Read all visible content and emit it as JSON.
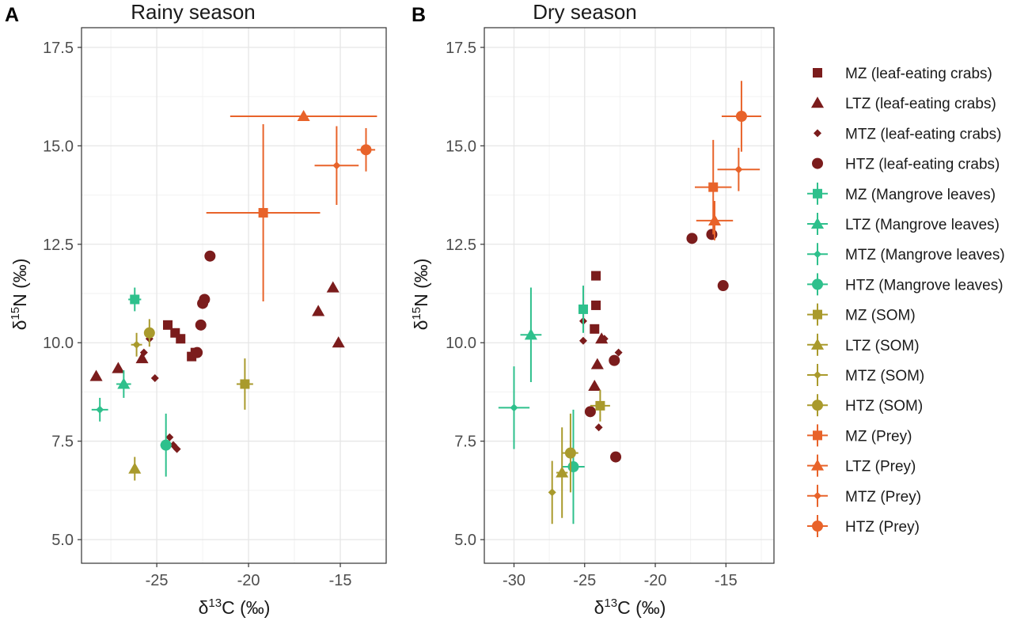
{
  "chart_data": [
    {
      "type": "scatter",
      "tag": "A",
      "title": "Rainy season",
      "xlabel": {
        "base": "δ",
        "sup": "13",
        "rest": "C (‰)"
      },
      "ylabel": {
        "base": "δ",
        "sup": "15",
        "rest": "N (‰)"
      },
      "xlim": [
        -29.1,
        -12.5
      ],
      "ylim": [
        4.4,
        18.0
      ],
      "xticks": [
        -25,
        -20,
        -15
      ],
      "xtick_labels": [
        "-25",
        "-20",
        "-15"
      ],
      "yticks": [
        5.0,
        7.5,
        10.0,
        12.5,
        15.0,
        17.5
      ],
      "ytick_labels": [
        "5.0",
        "7.5",
        "10.0",
        "12.5",
        "15.0",
        "17.5"
      ],
      "points": [
        {
          "series": 1,
          "x": -28.3,
          "y": 9.15
        },
        {
          "series": 1,
          "x": -27.1,
          "y": 9.35
        },
        {
          "series": 1,
          "x": -25.8,
          "y": 9.6
        },
        {
          "series": 1,
          "x": -16.2,
          "y": 10.8
        },
        {
          "series": 1,
          "x": -15.4,
          "y": 11.4
        },
        {
          "series": 1,
          "x": -15.1,
          "y": 10.0
        },
        {
          "series": 0,
          "x": -24.4,
          "y": 10.45
        },
        {
          "series": 0,
          "x": -24.0,
          "y": 10.25
        },
        {
          "series": 0,
          "x": -23.7,
          "y": 10.1
        },
        {
          "series": 0,
          "x": -23.1,
          "y": 9.65
        },
        {
          "series": 0,
          "x": -22.9,
          "y": 9.75
        },
        {
          "series": 2,
          "x": -25.1,
          "y": 9.1
        },
        {
          "series": 2,
          "x": -25.4,
          "y": 10.1
        },
        {
          "series": 2,
          "x": -25.7,
          "y": 9.75
        },
        {
          "series": 2,
          "x": -24.3,
          "y": 7.6
        },
        {
          "series": 2,
          "x": -24.1,
          "y": 7.4
        },
        {
          "series": 2,
          "x": -23.9,
          "y": 7.3
        },
        {
          "series": 3,
          "x": -22.8,
          "y": 9.75
        },
        {
          "series": 3,
          "x": -22.5,
          "y": 11.0
        },
        {
          "series": 3,
          "x": -22.4,
          "y": 11.1
        },
        {
          "series": 3,
          "x": -22.1,
          "y": 12.2
        },
        {
          "series": 3,
          "x": -22.6,
          "y": 10.45
        },
        {
          "series": 4,
          "x": -26.2,
          "y": 11.1,
          "xerr": 0.35,
          "yerr": 0.3
        },
        {
          "series": 5,
          "x": -26.8,
          "y": 8.95,
          "xerr": 0.4,
          "yerr": 0.35
        },
        {
          "series": 6,
          "x": -28.1,
          "y": 8.3,
          "xerr": 0.45,
          "yerr": 0.3
        },
        {
          "series": 7,
          "x": -24.5,
          "y": 7.4,
          "xerr": 0.3,
          "yerr": 0.8
        },
        {
          "series": 11,
          "x": -25.4,
          "y": 10.25,
          "xerr": 0.15,
          "yerr": 0.35
        },
        {
          "series": 10,
          "x": -26.1,
          "y": 9.95,
          "xerr": 0.3,
          "yerr": 0.3
        },
        {
          "series": 9,
          "x": -26.2,
          "y": 6.8,
          "xerr": 0.15,
          "yerr": 0.3
        },
        {
          "series": 8,
          "x": -20.2,
          "y": 8.95,
          "xerr": 0.45,
          "yerr": 0.65
        },
        {
          "series": 12,
          "x": -19.2,
          "y": 13.3,
          "xerr": 3.1,
          "yerr": 2.25
        },
        {
          "series": 13,
          "x": -17.0,
          "y": 15.75,
          "xerr": 4.0,
          "yerr": 0
        },
        {
          "series": 14,
          "x": -15.2,
          "y": 14.5,
          "xerr": 1.2,
          "yerr": 1.0
        },
        {
          "series": 15,
          "x": -13.6,
          "y": 14.9,
          "xerr": 0.5,
          "yerr": 0.55
        }
      ]
    },
    {
      "type": "scatter",
      "tag": "B",
      "title": "Dry season",
      "xlabel": {
        "base": "δ",
        "sup": "13",
        "rest": "C (‰)"
      },
      "ylabel": {
        "base": "δ",
        "sup": "15",
        "rest": "N (‰)"
      },
      "xlim": [
        -32.1,
        -11.6
      ],
      "ylim": [
        4.4,
        18.0
      ],
      "xticks": [
        -30,
        -25,
        -20,
        -15
      ],
      "xtick_labels": [
        "-30",
        "-25",
        "-20",
        "-15"
      ],
      "yticks": [
        5.0,
        7.5,
        10.0,
        12.5,
        15.0,
        17.5
      ],
      "ytick_labels": [
        "5.0",
        "7.5",
        "10.0",
        "12.5",
        "15.0",
        "17.5"
      ],
      "points": [
        {
          "series": 0,
          "x": -24.2,
          "y": 11.7
        },
        {
          "series": 0,
          "x": -24.2,
          "y": 10.95
        },
        {
          "series": 0,
          "x": -24.3,
          "y": 10.35
        },
        {
          "series": 1,
          "x": -24.1,
          "y": 9.45
        },
        {
          "series": 1,
          "x": -24.3,
          "y": 8.9
        },
        {
          "series": 1,
          "x": -23.8,
          "y": 10.1
        },
        {
          "series": 2,
          "x": -25.1,
          "y": 10.55
        },
        {
          "series": 2,
          "x": -25.1,
          "y": 10.05
        },
        {
          "series": 2,
          "x": -22.6,
          "y": 9.75
        },
        {
          "series": 2,
          "x": -24.0,
          "y": 7.85
        },
        {
          "series": 2,
          "x": -23.6,
          "y": 10.1
        },
        {
          "series": 3,
          "x": -24.6,
          "y": 8.25
        },
        {
          "series": 3,
          "x": -22.9,
          "y": 9.55
        },
        {
          "series": 3,
          "x": -22.8,
          "y": 7.1
        },
        {
          "series": 3,
          "x": -17.4,
          "y": 12.65
        },
        {
          "series": 3,
          "x": -16.0,
          "y": 12.75
        },
        {
          "series": 3,
          "x": -15.2,
          "y": 11.45
        },
        {
          "series": 4,
          "x": -25.1,
          "y": 10.85,
          "xerr": 0.3,
          "yerr": 0.6
        },
        {
          "series": 5,
          "x": -28.8,
          "y": 10.2,
          "xerr": 0.75,
          "yerr": 1.2
        },
        {
          "series": 6,
          "x": -30.0,
          "y": 8.35,
          "xerr": 1.1,
          "yerr": 1.05
        },
        {
          "series": 7,
          "x": -25.8,
          "y": 6.85,
          "xerr": 0.8,
          "yerr": 1.45
        },
        {
          "series": 8,
          "x": -23.9,
          "y": 8.4,
          "xerr": 0.7,
          "yerr": 0.4
        },
        {
          "series": 9,
          "x": -26.6,
          "y": 6.7,
          "xerr": 0.4,
          "yerr": 1.15
        },
        {
          "series": 10,
          "x": -27.3,
          "y": 6.2,
          "xerr": 0.15,
          "yerr": 0.8
        },
        {
          "series": 11,
          "x": -26.0,
          "y": 7.2,
          "xerr": 0.55,
          "yerr": 1.0
        },
        {
          "series": 12,
          "x": -15.9,
          "y": 13.95,
          "xerr": 1.3,
          "yerr": 1.2
        },
        {
          "series": 13,
          "x": -15.8,
          "y": 13.1,
          "xerr": 1.3,
          "yerr": 0.5
        },
        {
          "series": 14,
          "x": -14.1,
          "y": 14.4,
          "xerr": 1.5,
          "yerr": 0.55
        },
        {
          "series": 15,
          "x": -13.9,
          "y": 15.75,
          "xerr": 1.4,
          "yerr": 0.9
        }
      ]
    }
  ],
  "legend": {
    "position": "right",
    "items": [
      {
        "label": "MZ (leaf-eating crabs)",
        "shape": "square",
        "color": "#7b1c1c",
        "errorbar": false
      },
      {
        "label": "LTZ (leaf-eating crabs)",
        "shape": "triangle",
        "color": "#7b1c1c",
        "errorbar": false
      },
      {
        "label": "MTZ (leaf-eating crabs)",
        "shape": "diamond",
        "color": "#7b1c1c",
        "errorbar": false
      },
      {
        "label": "HTZ (leaf-eating crabs)",
        "shape": "circle",
        "color": "#7b1c1c",
        "errorbar": false
      },
      {
        "label": "MZ (Mangrove leaves)",
        "shape": "square",
        "color": "#2ec08c",
        "errorbar": true
      },
      {
        "label": "LTZ (Mangrove leaves)",
        "shape": "triangle",
        "color": "#2ec08c",
        "errorbar": true
      },
      {
        "label": "MTZ (Mangrove leaves)",
        "shape": "diamond",
        "color": "#2ec08c",
        "errorbar": true
      },
      {
        "label": "HTZ (Mangrove leaves)",
        "shape": "circle",
        "color": "#2ec08c",
        "errorbar": true
      },
      {
        "label": "MZ (SOM)",
        "shape": "square",
        "color": "#a99a2c",
        "errorbar": true
      },
      {
        "label": "LTZ (SOM)",
        "shape": "triangle",
        "color": "#a99a2c",
        "errorbar": true
      },
      {
        "label": "MTZ (SOM)",
        "shape": "diamond",
        "color": "#a99a2c",
        "errorbar": true
      },
      {
        "label": "HTZ (SOM)",
        "shape": "circle",
        "color": "#a99a2c",
        "errorbar": true
      },
      {
        "label": "MZ (Prey)",
        "shape": "square",
        "color": "#e8632a",
        "errorbar": true
      },
      {
        "label": "LTZ (Prey)",
        "shape": "triangle",
        "color": "#e8632a",
        "errorbar": true
      },
      {
        "label": "MTZ (Prey)",
        "shape": "diamond",
        "color": "#e8632a",
        "errorbar": true
      },
      {
        "label": "HTZ (Prey)",
        "shape": "circle",
        "color": "#e8632a",
        "errorbar": true
      }
    ]
  }
}
